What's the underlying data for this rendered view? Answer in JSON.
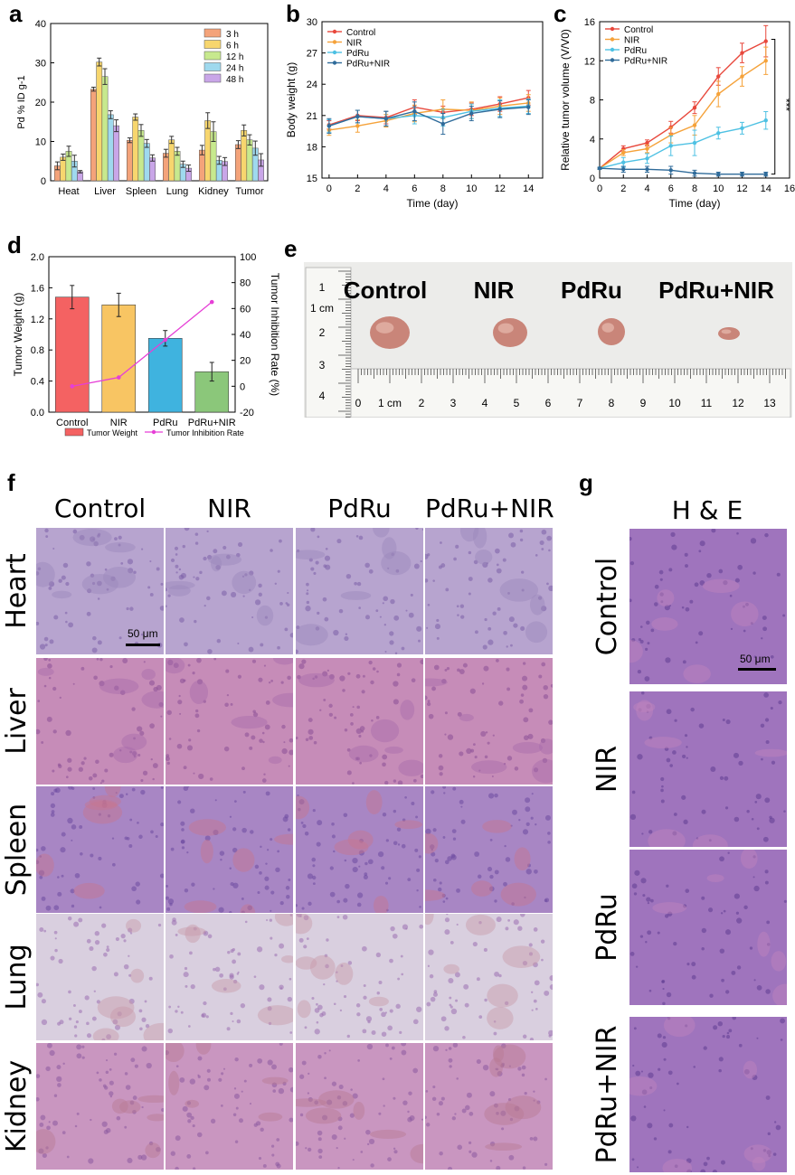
{
  "panels": {
    "a": "a",
    "b": "b",
    "c": "c",
    "d": "d",
    "e": "e",
    "f": "f",
    "g": "g"
  },
  "colors": {
    "series_a": [
      "#f4a37a",
      "#f7d66e",
      "#c7e98e",
      "#9fd9ee",
      "#c9a6e8"
    ],
    "line_control": "#e8483c",
    "line_nir": "#f5a23a",
    "line_pdru": "#4ec1e3",
    "line_pdru_nir": "#2f6b9a",
    "bar_d": [
      "#f46262",
      "#f8c563",
      "#3fb3df",
      "#8bc77a"
    ],
    "inhibition_line": "#e63fd6"
  },
  "chart_data": [
    {
      "id": "a",
      "type": "bar",
      "ylabel": "Pd % ID g-1",
      "ylim": [
        0,
        40
      ],
      "yticks": [
        0,
        10,
        20,
        30,
        40
      ],
      "categories": [
        "Heat",
        "Liver",
        "Spleen",
        "Lung",
        "Kidney",
        "Tumor"
      ],
      "series": [
        {
          "name": "3 h",
          "values": [
            3.8,
            23.3,
            10.3,
            7.0,
            7.8,
            9.2
          ],
          "errors": [
            1.0,
            0.5,
            0.6,
            1.0,
            1.2,
            1.0
          ]
        },
        {
          "name": "6 h",
          "values": [
            6.0,
            30.2,
            16.2,
            10.4,
            15.3,
            12.8
          ],
          "errors": [
            0.8,
            1.0,
            0.8,
            0.9,
            2.0,
            1.4
          ]
        },
        {
          "name": "12 h",
          "values": [
            7.5,
            26.5,
            12.8,
            7.5,
            12.5,
            10.4
          ],
          "errors": [
            1.3,
            2.0,
            1.5,
            1.0,
            2.5,
            1.3
          ]
        },
        {
          "name": "24 h",
          "values": [
            5.0,
            16.8,
            9.5,
            4.2,
            5.2,
            8.3
          ],
          "errors": [
            1.5,
            1.0,
            1.0,
            0.8,
            1.0,
            1.8
          ]
        },
        {
          "name": "48 h",
          "values": [
            2.3,
            14.0,
            5.8,
            3.2,
            4.9,
            5.3
          ],
          "errors": [
            0.3,
            1.5,
            0.8,
            0.8,
            1.0,
            1.6
          ]
        }
      ]
    },
    {
      "id": "b",
      "type": "line",
      "xlabel": "Time (day)",
      "ylabel": "Body weight (g)",
      "xlim": [
        -0.5,
        15
      ],
      "ylim": [
        15,
        30
      ],
      "xticks": [
        0,
        2,
        4,
        6,
        8,
        10,
        12,
        14
      ],
      "yticks": [
        15,
        18,
        21,
        24,
        27,
        30
      ],
      "x": [
        0,
        2,
        4,
        6,
        8,
        10,
        12,
        14
      ],
      "series": [
        {
          "name": "Control",
          "values": [
            20.1,
            21.0,
            20.8,
            21.8,
            21.3,
            21.6,
            22.1,
            22.7
          ],
          "errors": [
            0.4,
            0.5,
            0.6,
            0.7,
            0.6,
            0.6,
            0.7,
            0.7
          ]
        },
        {
          "name": "NIR",
          "values": [
            19.6,
            20.0,
            20.5,
            21.2,
            21.6,
            21.5,
            21.9,
            22.2
          ],
          "errors": [
            0.5,
            0.6,
            0.6,
            0.8,
            0.9,
            0.8,
            0.8,
            0.8
          ]
        },
        {
          "name": "PdRu",
          "values": [
            20.0,
            20.9,
            20.7,
            21.0,
            20.8,
            21.4,
            21.7,
            21.9
          ],
          "errors": [
            0.6,
            0.6,
            0.7,
            0.8,
            0.8,
            0.7,
            0.8,
            0.7
          ]
        },
        {
          "name": "PdRu+NIR",
          "values": [
            20.0,
            20.9,
            20.7,
            21.4,
            20.2,
            21.2,
            21.6,
            21.8
          ],
          "errors": [
            0.7,
            0.6,
            0.7,
            0.9,
            1.0,
            0.7,
            0.8,
            0.7
          ]
        }
      ]
    },
    {
      "id": "c",
      "type": "line",
      "xlabel": "Time (day)",
      "ylabel": "Relative tumor volume (V/V0)",
      "xlim": [
        0,
        16
      ],
      "ylim": [
        0,
        16
      ],
      "xticks": [
        0,
        2,
        4,
        6,
        8,
        10,
        12,
        14,
        16
      ],
      "yticks": [
        0,
        4,
        8,
        12,
        16
      ],
      "x": [
        0,
        2,
        4,
        6,
        8,
        10,
        12,
        14
      ],
      "annotation": "***",
      "series": [
        {
          "name": "Control",
          "values": [
            1.0,
            3.0,
            3.6,
            5.2,
            7.2,
            10.4,
            12.8,
            14.0
          ],
          "errors": [
            0.1,
            0.3,
            0.3,
            0.6,
            0.6,
            0.9,
            1.0,
            1.6
          ]
        },
        {
          "name": "NIR",
          "values": [
            1.0,
            2.6,
            3.0,
            4.4,
            5.4,
            8.6,
            10.4,
            12.0
          ],
          "errors": [
            0.1,
            0.3,
            0.4,
            0.8,
            1.0,
            1.3,
            1.0,
            1.4
          ]
        },
        {
          "name": "PdRu",
          "values": [
            1.0,
            1.6,
            2.0,
            3.3,
            3.6,
            4.6,
            5.1,
            5.9
          ],
          "errors": [
            0.1,
            0.5,
            0.5,
            1.0,
            1.3,
            0.6,
            0.6,
            0.9
          ]
        },
        {
          "name": "PdRu+NIR",
          "values": [
            1.0,
            0.9,
            0.9,
            0.8,
            0.5,
            0.4,
            0.4,
            0.4
          ],
          "errors": [
            0.1,
            0.3,
            0.3,
            0.4,
            0.3,
            0.2,
            0.2,
            0.2
          ]
        }
      ]
    },
    {
      "id": "d",
      "type": "bar",
      "ylabel": "Tumor Weight (g)",
      "ylabel_right": "Tumor Inhibition Rate (%)",
      "ylim": [
        0,
        2.0
      ],
      "yticks": [
        0.0,
        0.4,
        0.8,
        1.2,
        1.6,
        2.0
      ],
      "ylim_right": [
        -20,
        100
      ],
      "yticks_right": [
        -20,
        0,
        20,
        40,
        60,
        80,
        100
      ],
      "categories": [
        "Control",
        "NIR",
        "PdRu",
        "PdRu+NIR"
      ],
      "values": [
        1.48,
        1.38,
        0.95,
        0.52
      ],
      "errors": [
        0.15,
        0.15,
        0.1,
        0.12
      ],
      "inhibition": [
        0,
        6.8,
        35.8,
        65.0
      ],
      "legend": [
        "Tumor Weight",
        "Tumor Inhibition Rate"
      ]
    }
  ],
  "panel_e": {
    "labels": [
      "Control",
      "NIR",
      "PdRu",
      "PdRu+NIR"
    ],
    "vertical_ticks": [
      "1",
      "1 cm",
      "2",
      "3",
      "4"
    ],
    "horizontal_ticks": [
      "0",
      "1 cm",
      "2",
      "3",
      "4",
      "5",
      "6",
      "7",
      "8",
      "9",
      "10",
      "11",
      "12",
      "13"
    ]
  },
  "panel_f": {
    "columns": [
      "Control",
      "NIR",
      "PdRu",
      "PdRu+NIR"
    ],
    "rows": [
      "Heart",
      "Liver",
      "Spleen",
      "Lung",
      "Kidney"
    ],
    "scalebar": "50 μm"
  },
  "panel_g": {
    "title": "H & E",
    "rows": [
      "Control",
      "NIR",
      "PdRu",
      "PdRu+NIR"
    ],
    "scalebar": "50 μm"
  }
}
